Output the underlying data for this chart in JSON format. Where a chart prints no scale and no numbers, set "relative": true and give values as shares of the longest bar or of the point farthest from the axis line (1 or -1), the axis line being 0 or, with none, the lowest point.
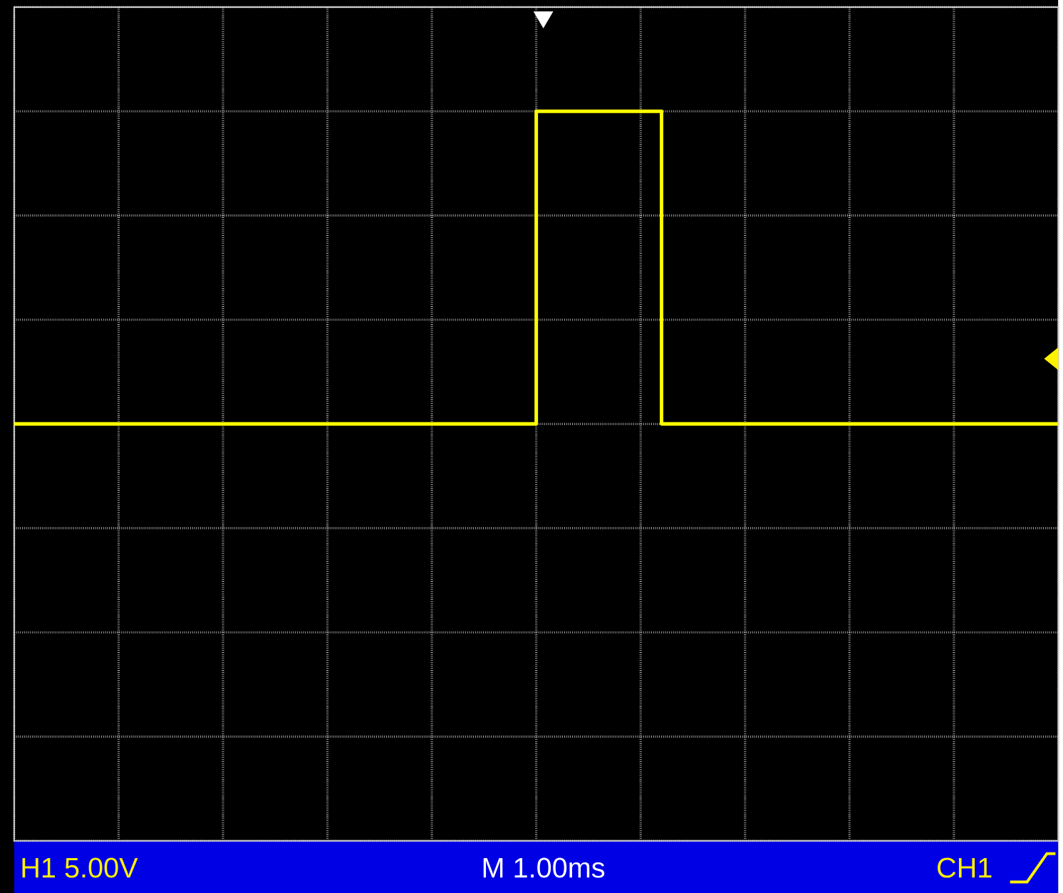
{
  "chart_data": {
    "type": "step",
    "relative": true,
    "grid": true,
    "categories": [
      null,
      null,
      null,
      null,
      null,
      null,
      null,
      null,
      null,
      null,
      null,
      null,
      null,
      null,
      null,
      null,
      null,
      null,
      null,
      null,
      null,
      null,
      null,
      null,
      null,
      null,
      null,
      null,
      null,
      null,
      null,
      null,
      null,
      null,
      null,
      null,
      null,
      null,
      null,
      null,
      null,
      null,
      null,
      null,
      null,
      null,
      null,
      null,
      null,
      null,
      null
    ],
    "series": [
      {
        "color": "#ffff00",
        "values": [
          0,
          0,
          0,
          0,
          0,
          0,
          0,
          0,
          0,
          0,
          0,
          0,
          0,
          0,
          0,
          0,
          0,
          0,
          0,
          0,
          0,
          0,
          0,
          0,
          0,
          1,
          1,
          1,
          1,
          1,
          1,
          0,
          0,
          0,
          0,
          0,
          0,
          0,
          0,
          0,
          0,
          0,
          0,
          0,
          0,
          0,
          0,
          0,
          0,
          0,
          0
        ]
      }
    ],
    "annotations": [
      "H1 5.00V",
      "M 1.00ms",
      "CH1"
    ]
  }
}
